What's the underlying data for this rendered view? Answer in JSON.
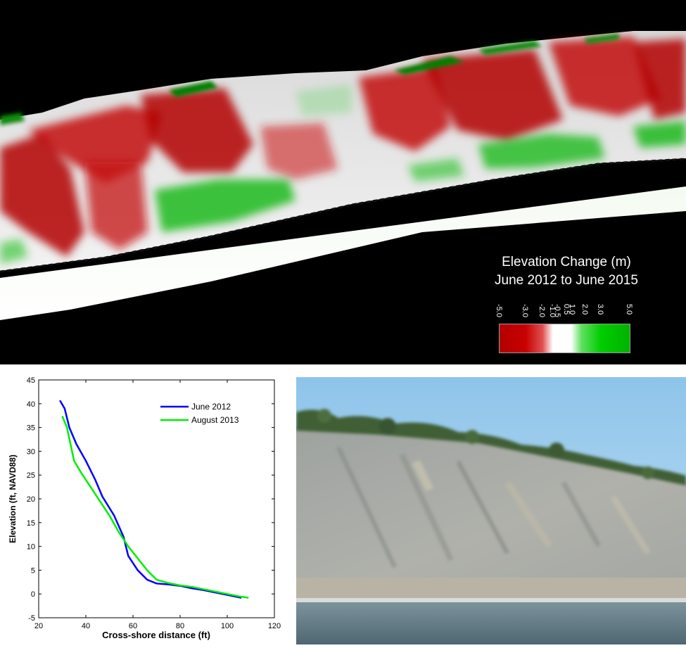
{
  "elevation_map": {
    "legend_title_line1": "Elevation Change (m)",
    "legend_title_line2": "June 2012 to June 2015",
    "colorbar_ticks": [
      {
        "value": -5.0,
        "label": "-5.0"
      },
      {
        "value": -3.0,
        "label": "-3.0"
      },
      {
        "value": -2.0,
        "label": "-2.0"
      },
      {
        "value": -1.0,
        "label": "-1.0"
      },
      {
        "value": -0.5,
        "label": "-0.5"
      },
      {
        "value": 0.5,
        "label": "0.5"
      },
      {
        "value": 1.0,
        "label": "1.0"
      },
      {
        "value": 2.0,
        "label": "2.0"
      },
      {
        "value": 3.0,
        "label": "3.0"
      },
      {
        "value": 5.0,
        "label": "5.0"
      }
    ],
    "colors": {
      "loss": "#b30000",
      "neutral": "#ffffff",
      "gain": "#00b300",
      "background": "#000000"
    }
  },
  "chart_data": {
    "type": "line",
    "title": "",
    "xlabel": "Cross-shore distance (ft)",
    "ylabel": "Elevation (ft, NAVD88)",
    "xlim": [
      20,
      120
    ],
    "ylim": [
      -5,
      45
    ],
    "xticks": [
      20,
      40,
      60,
      80,
      100,
      120
    ],
    "yticks": [
      -5,
      0,
      5,
      10,
      15,
      20,
      25,
      30,
      35,
      40,
      45
    ],
    "legend_position": "top-right",
    "grid": false,
    "series": [
      {
        "name": "June 2012",
        "color": "#0000ff",
        "points": [
          [
            29,
            40.7
          ],
          [
            31,
            39
          ],
          [
            33,
            35
          ],
          [
            36,
            31.5
          ],
          [
            40,
            28
          ],
          [
            44,
            24
          ],
          [
            47,
            20.5
          ],
          [
            52,
            16.5
          ],
          [
            56,
            12
          ],
          [
            58,
            8
          ],
          [
            62,
            5
          ],
          [
            66,
            3
          ],
          [
            70,
            2.2
          ],
          [
            75,
            2
          ],
          [
            80,
            1.7
          ],
          [
            85,
            1.2
          ],
          [
            90,
            0.8
          ],
          [
            95,
            0.3
          ],
          [
            100,
            -0.2
          ],
          [
            106,
            -0.8
          ]
        ]
      },
      {
        "name": "August 2013",
        "color": "#00ee00",
        "points": [
          [
            30,
            37.4
          ],
          [
            32,
            35
          ],
          [
            35,
            28
          ],
          [
            38,
            25.5
          ],
          [
            42,
            22.5
          ],
          [
            46,
            19.5
          ],
          [
            50,
            16.5
          ],
          [
            54,
            13
          ],
          [
            58,
            10
          ],
          [
            62,
            7.5
          ],
          [
            66,
            5
          ],
          [
            70,
            3
          ],
          [
            75,
            2.3
          ],
          [
            80,
            1.8
          ],
          [
            85,
            1.5
          ],
          [
            90,
            1
          ],
          [
            95,
            0.5
          ],
          [
            100,
            0
          ],
          [
            105,
            -0.5
          ],
          [
            109,
            -0.8
          ]
        ]
      }
    ]
  },
  "photo": {
    "colors": {
      "sky": "#a9d2ee",
      "cliff": "#a8aaa6",
      "beach": "#b7b1a4",
      "water": "#5e7684",
      "vegetation": "#3f5e34"
    }
  }
}
